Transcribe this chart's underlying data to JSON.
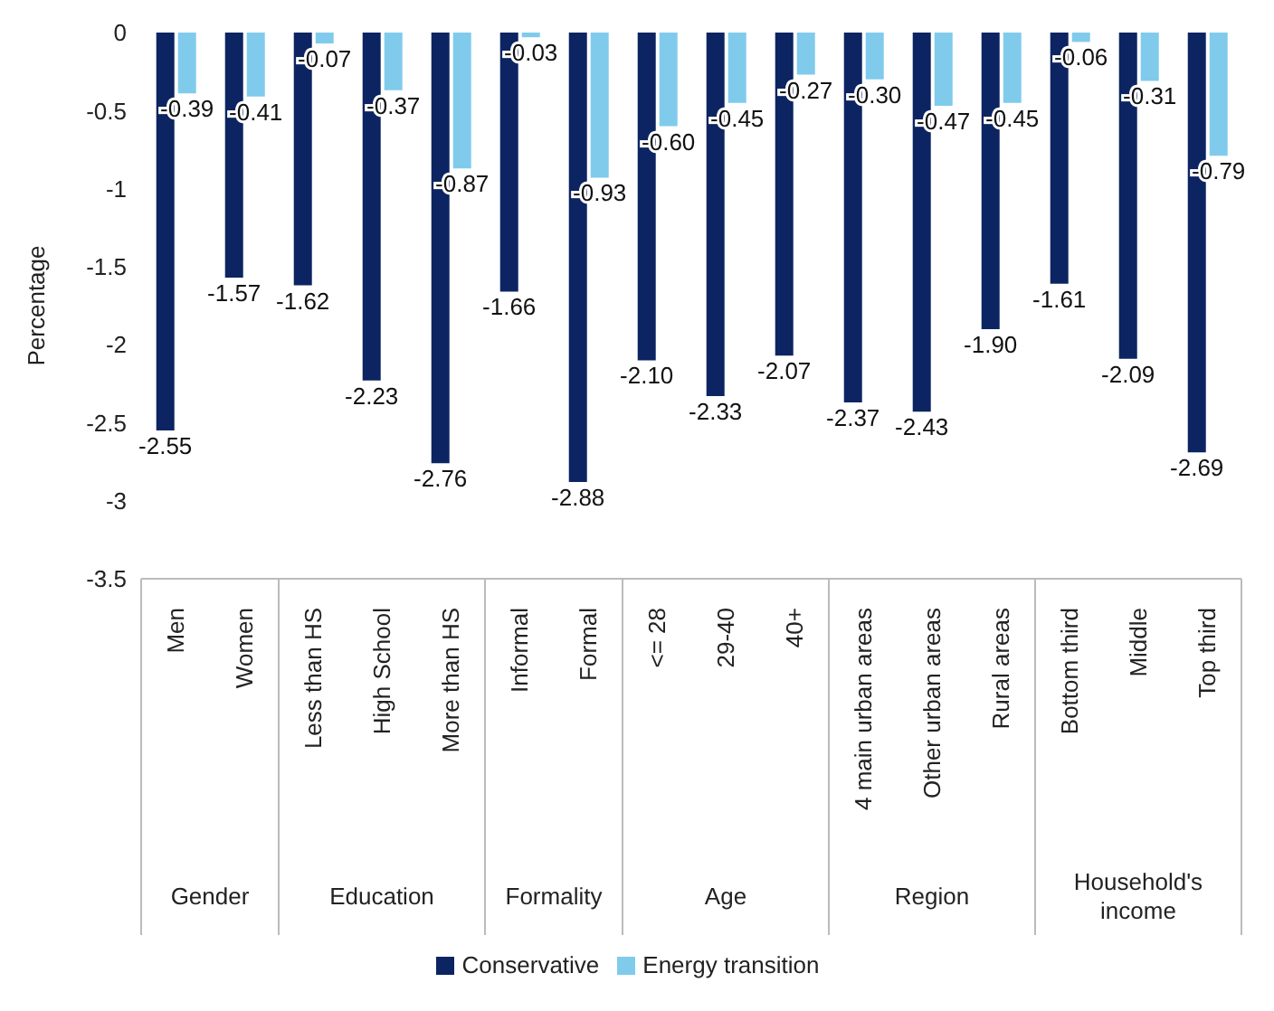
{
  "chart_data": {
    "type": "bar",
    "ylabel": "Percentage",
    "categories": [
      "Men",
      "Women",
      "Less than HS",
      "High School",
      "More than HS",
      "Informal",
      "Formal",
      "<= 28",
      "29-40",
      "40+",
      "4 main urban areas",
      "Other urban areas",
      "Rural areas",
      "Bottom third",
      "Middle",
      "Top third"
    ],
    "series": [
      {
        "name": "Conservative",
        "color": "#0c2461",
        "values": [
          -2.55,
          -1.57,
          -1.62,
          -2.23,
          -2.76,
          -1.66,
          -2.88,
          -2.1,
          -2.33,
          -2.07,
          -2.37,
          -2.43,
          -1.9,
          -1.61,
          -2.09,
          -2.69
        ],
        "value_labels": [
          "-2.55",
          "-1.57",
          "-1.62",
          "-2.23",
          "-2.76",
          "-1.66",
          "-2.88",
          "-2.10",
          "-2.33",
          "-2.07",
          "-2.37",
          "-2.43",
          "-1.90",
          "-1.61",
          "-2.09",
          "-2.69"
        ]
      },
      {
        "name": "Energy transition",
        "color": "#80cbec",
        "values": [
          -0.39,
          -0.41,
          -0.07,
          -0.37,
          -0.87,
          -0.03,
          -0.93,
          -0.6,
          -0.45,
          -0.27,
          -0.3,
          -0.47,
          -0.45,
          -0.06,
          -0.31,
          -0.79
        ],
        "value_labels": [
          "-0.39",
          "-0.41",
          "-0.07",
          "-0.37",
          "-0.87",
          "-0.03",
          "-0.93",
          "-0.60",
          "-0.45",
          "-0.27",
          "-0.30",
          "-0.47",
          "-0.45",
          "-0.06",
          "-0.31",
          "-0.79"
        ]
      }
    ],
    "ylim": [
      -3.5,
      0
    ],
    "yticks": [
      0,
      -0.5,
      -1,
      -1.5,
      -2,
      -2.5,
      -3,
      -3.5
    ],
    "grid": false,
    "legend": "bottom",
    "annotations": [
      "Gender",
      "Education",
      "Formality",
      "Age",
      "Region",
      "Household's income"
    ]
  }
}
